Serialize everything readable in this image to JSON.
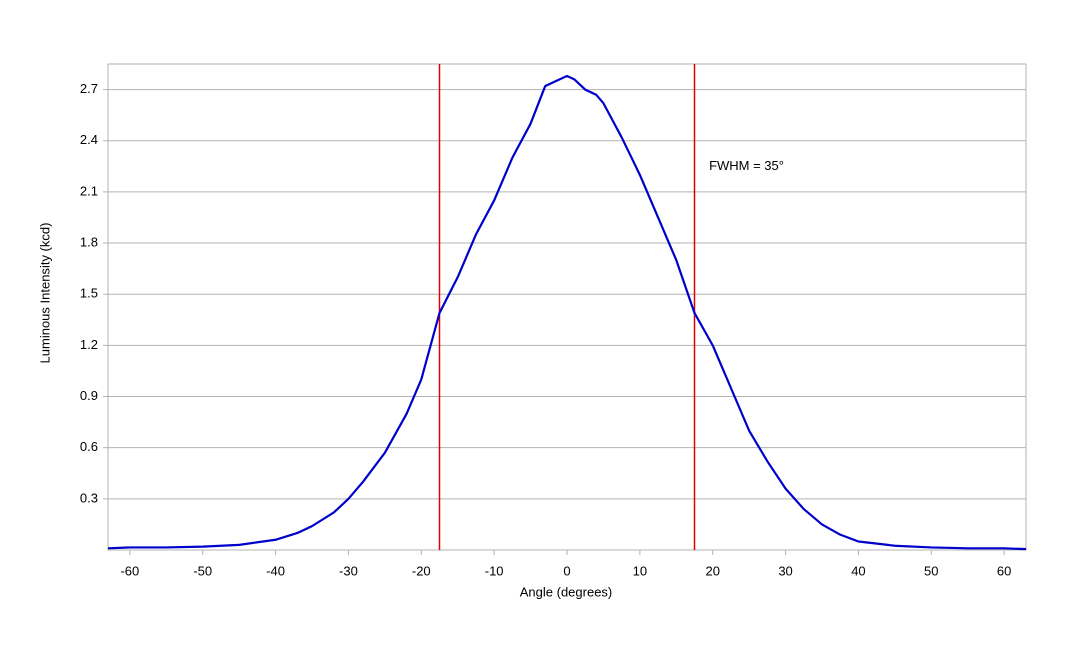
{
  "chart_data": {
    "type": "line",
    "x_label": "Angle (degrees)",
    "y_label": "Luminous Intensity (kcd)",
    "annotation": "FWHM = 35°",
    "annotation_x": 19.5,
    "annotation_y": 2.25,
    "vlines": [
      -17.5,
      17.5
    ],
    "vline_color": "#e00000",
    "xlim": [
      -63,
      63
    ],
    "ylim": [
      0,
      2.85
    ],
    "xticks": [
      -60,
      -50,
      -40,
      -30,
      -20,
      -10,
      0,
      10,
      20,
      30,
      40,
      50,
      60
    ],
    "yticks": [
      0.3,
      0.6,
      0.9,
      1.2,
      1.5,
      1.8,
      2.1,
      2.4,
      2.7
    ],
    "grid": true,
    "series": [
      {
        "color": "#0000cc",
        "x": [
          -63,
          -60,
          -55,
          -50,
          -45,
          -40,
          -37,
          -35,
          -32,
          -30,
          -28,
          -25,
          -22,
          -20,
          -17.5,
          -15,
          -12.5,
          -10,
          -7.5,
          -5,
          -3,
          -1.5,
          0,
          1,
          2.5,
          4,
          5,
          7.5,
          10,
          12.5,
          15,
          17.5,
          20,
          22.5,
          25,
          27.5,
          30,
          32.5,
          35,
          37.5,
          40,
          45,
          50,
          55,
          60,
          63
        ],
        "values": [
          0.01,
          0.015,
          0.015,
          0.02,
          0.03,
          0.06,
          0.1,
          0.14,
          0.22,
          0.3,
          0.4,
          0.57,
          0.8,
          1.0,
          1.39,
          1.6,
          1.85,
          2.05,
          2.3,
          2.5,
          2.72,
          2.75,
          2.78,
          2.76,
          2.7,
          2.67,
          2.62,
          2.42,
          2.2,
          1.95,
          1.7,
          1.39,
          1.2,
          0.95,
          0.7,
          0.52,
          0.36,
          0.24,
          0.15,
          0.09,
          0.05,
          0.025,
          0.015,
          0.01,
          0.01,
          0.005
        ]
      }
    ]
  }
}
